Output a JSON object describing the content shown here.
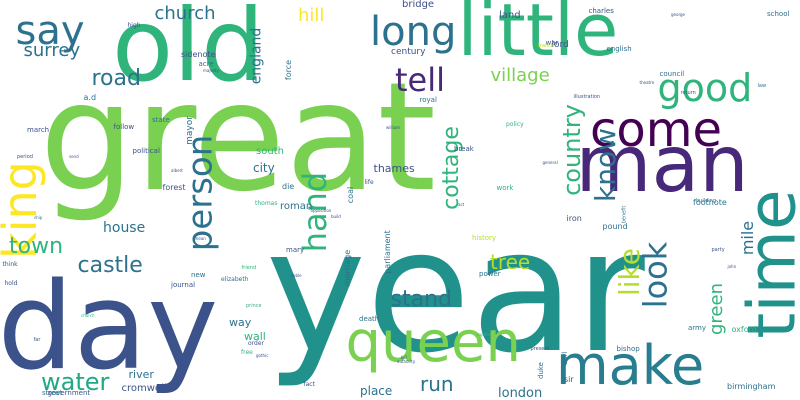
{
  "word_cloud": {
    "palette": {
      "green_lime": "#7ad151",
      "green_light": "#86d549",
      "green": "#2fb47c",
      "green_dark": "#22a884",
      "teal": "#21918c",
      "teal_dark": "#287d8e",
      "blue": "#2c728e",
      "blue_dark": "#3b528b",
      "purple": "#482878",
      "purple_dark": "#440154",
      "yellow": "#fde725",
      "yellow_green": "#b5de2b"
    },
    "words": [
      {
        "text": "great",
        "color": "#7ad151",
        "vertical": false
      },
      {
        "text": "year",
        "color": "#21918c",
        "vertical": false
      },
      {
        "text": "old",
        "color": "#2fb47c",
        "vertical": false
      },
      {
        "text": "little",
        "color": "#2fb47c",
        "vertical": false
      },
      {
        "text": "day",
        "color": "#3b528b",
        "vertical": false
      },
      {
        "text": "man",
        "color": "#482878",
        "vertical": false
      },
      {
        "text": "queen",
        "color": "#7ad151",
        "vertical": false
      },
      {
        "text": "time",
        "color": "#21918c",
        "vertical": true
      },
      {
        "text": "make",
        "color": "#287d8e",
        "vertical": false
      },
      {
        "text": "come",
        "color": "#440154",
        "vertical": false
      },
      {
        "text": "king",
        "color": "#fde725",
        "vertical": true
      },
      {
        "text": "say",
        "color": "#2c728e",
        "vertical": false
      },
      {
        "text": "long",
        "color": "#2c728e",
        "vertical": false
      },
      {
        "text": "good",
        "color": "#2fb47c",
        "vertical": false
      },
      {
        "text": "person",
        "color": "#2c728e",
        "vertical": true
      },
      {
        "text": "tell",
        "color": "#482878",
        "vertical": false
      },
      {
        "text": "know",
        "color": "#2c728e",
        "vertical": true
      },
      {
        "text": "look",
        "color": "#2c728e",
        "vertical": true
      },
      {
        "text": "hand",
        "color": "#2fb47c",
        "vertical": true
      },
      {
        "text": "like",
        "color": "#b5de2b",
        "vertical": true
      },
      {
        "text": "country",
        "color": "#2fb47c",
        "vertical": true
      },
      {
        "text": "road",
        "color": "#2c728e",
        "vertical": false
      },
      {
        "text": "castle",
        "color": "#2c728e",
        "vertical": false
      },
      {
        "text": "town",
        "color": "#2fb47c",
        "vertical": false
      },
      {
        "text": "water",
        "color": "#22a884",
        "vertical": false
      },
      {
        "text": "stand",
        "color": "#2c728e",
        "vertical": false
      },
      {
        "text": "cottage",
        "color": "#2fb47c",
        "vertical": true
      },
      {
        "text": "village",
        "color": "#7ad151",
        "vertical": false
      },
      {
        "text": "church",
        "color": "#2c728e",
        "vertical": false
      },
      {
        "text": "surrey",
        "color": "#2c728e",
        "vertical": false
      },
      {
        "text": "hill",
        "color": "#fde725",
        "vertical": false
      },
      {
        "text": "tree",
        "color": "#b5de2b",
        "vertical": false
      },
      {
        "text": "green",
        "color": "#2fb47c",
        "vertical": true
      },
      {
        "text": "mile",
        "color": "#2c728e",
        "vertical": true
      },
      {
        "text": "run",
        "color": "#2c728e",
        "vertical": false
      },
      {
        "text": "house",
        "color": "#2c728e",
        "vertical": false
      },
      {
        "text": "london",
        "color": "#2c728e",
        "vertical": false
      },
      {
        "text": "england",
        "color": "#2c728e",
        "vertical": true
      },
      {
        "text": "city",
        "color": "#2c728e",
        "vertical": false
      },
      {
        "text": "thames",
        "color": "#3b528b",
        "vertical": false
      },
      {
        "text": "bridge",
        "color": "#3b528b",
        "vertical": false
      },
      {
        "text": "land",
        "color": "#3b528b",
        "vertical": false
      },
      {
        "text": "century",
        "color": "#3b528b",
        "vertical": false
      },
      {
        "text": "lord",
        "color": "#3b528b",
        "vertical": false
      },
      {
        "text": "place",
        "color": "#2c728e",
        "vertical": false
      },
      {
        "text": "river",
        "color": "#2c728e",
        "vertical": false
      },
      {
        "text": "cromwell",
        "color": "#3b528b",
        "vertical": false
      },
      {
        "text": "roman",
        "color": "#2c728e",
        "vertical": false
      },
      {
        "text": "south",
        "color": "#2fb47c",
        "vertical": false
      },
      {
        "text": "wall",
        "color": "#2fb47c",
        "vertical": false
      },
      {
        "text": "way",
        "color": "#2c728e",
        "vertical": false
      },
      {
        "text": "mayor",
        "color": "#2c728e",
        "vertical": true
      },
      {
        "text": "force",
        "color": "#2c728e",
        "vertical": true
      },
      {
        "text": "war",
        "color": "#3b528b",
        "vertical": false
      },
      {
        "text": "charles",
        "color": "#3b528b",
        "vertical": false
      },
      {
        "text": "english",
        "color": "#2c728e",
        "vertical": false
      },
      {
        "text": "council",
        "color": "#2c728e",
        "vertical": false
      },
      {
        "text": "school",
        "color": "#2c728e",
        "vertical": false
      },
      {
        "text": "royal",
        "color": "#2c728e",
        "vertical": false
      },
      {
        "text": "sidenote",
        "color": "#3b528b",
        "vertical": false
      },
      {
        "text": "acre",
        "color": "#2c728e",
        "vertical": false
      },
      {
        "text": "a.d",
        "color": "#2c728e",
        "vertical": false
      },
      {
        "text": "state",
        "color": "#2c728e",
        "vertical": false
      },
      {
        "text": "follow",
        "color": "#3b528b",
        "vertical": false
      },
      {
        "text": "political",
        "color": "#3b528b",
        "vertical": false
      },
      {
        "text": "forest",
        "color": "#3b528b",
        "vertical": false
      },
      {
        "text": "die",
        "color": "#2c728e",
        "vertical": false
      },
      {
        "text": "coal",
        "color": "#2c728e",
        "vertical": true
      },
      {
        "text": "life",
        "color": "#3b528b",
        "vertical": false
      },
      {
        "text": "break",
        "color": "#3b528b",
        "vertical": false
      },
      {
        "text": "work",
        "color": "#2fb47c",
        "vertical": false
      },
      {
        "text": "footnote",
        "color": "#2c728e",
        "vertical": false
      },
      {
        "text": "iron",
        "color": "#3b528b",
        "vertical": false
      },
      {
        "text": "pound",
        "color": "#2c728e",
        "vertical": false
      },
      {
        "text": "army",
        "color": "#2c728e",
        "vertical": false
      },
      {
        "text": "oxford",
        "color": "#2fb47c",
        "vertical": false
      },
      {
        "text": "bishop",
        "color": "#2c728e",
        "vertical": false
      },
      {
        "text": "birmingham",
        "color": "#2c728e",
        "vertical": false
      },
      {
        "text": "power",
        "color": "#2c728e",
        "vertical": false
      },
      {
        "text": "history",
        "color": "#b5de2b",
        "vertical": false
      },
      {
        "text": "mary",
        "color": "#3b528b",
        "vertical": false
      },
      {
        "text": "parliament",
        "color": "#2c728e",
        "vertical": true
      },
      {
        "text": "marriage",
        "color": "#2c728e",
        "vertical": true
      },
      {
        "text": "death",
        "color": "#2c728e",
        "vertical": false
      },
      {
        "text": "duke",
        "color": "#2c728e",
        "vertical": true
      },
      {
        "text": "earl",
        "color": "#2c728e",
        "vertical": true
      },
      {
        "text": "sir",
        "color": "#3b528b",
        "vertical": false
      },
      {
        "text": "government",
        "color": "#3b528b",
        "vertical": false
      },
      {
        "text": "street",
        "color": "#2c728e",
        "vertical": false
      },
      {
        "text": "journal",
        "color": "#3b528b",
        "vertical": false
      },
      {
        "text": "elizabeth",
        "color": "#2c728e",
        "vertical": false
      },
      {
        "text": "new",
        "color": "#2c728e",
        "vertical": false
      },
      {
        "text": "free",
        "color": "#2fb47c",
        "vertical": false
      },
      {
        "text": "order",
        "color": "#3b528b",
        "vertical": false
      },
      {
        "text": "fact",
        "color": "#3b528b",
        "vertical": false
      },
      {
        "text": "present",
        "color": "#3b528b",
        "vertical": false
      },
      {
        "text": "policy",
        "color": "#2fb47c",
        "vertical": false
      },
      {
        "text": "return",
        "color": "#3b528b",
        "vertical": false
      },
      {
        "text": "illustration",
        "color": "#3b528b",
        "vertical": false
      },
      {
        "text": "france",
        "color": "#b5de2b",
        "vertical": false
      },
      {
        "text": "building",
        "color": "#2c728e",
        "vertical": false
      },
      {
        "text": "party",
        "color": "#3b528b",
        "vertical": false
      },
      {
        "text": "law",
        "color": "#2c728e",
        "vertical": false
      },
      {
        "text": "march",
        "color": "#3b528b",
        "vertical": false
      },
      {
        "text": "thomas",
        "color": "#2fb47c",
        "vertical": false
      },
      {
        "text": "period",
        "color": "#3b528b",
        "vertical": false
      },
      {
        "text": "think",
        "color": "#3b528b",
        "vertical": false
      },
      {
        "text": "prince",
        "color": "#2fb47c",
        "vertical": false
      },
      {
        "text": "high",
        "color": "#3b528b",
        "vertical": false
      },
      {
        "text": "benefit",
        "color": "#2c728e",
        "vertical": true
      },
      {
        "text": "friend",
        "color": "#2fb47c",
        "vertical": false
      },
      {
        "text": "hold",
        "color": "#3b528b",
        "vertical": false
      },
      {
        "text": "far",
        "color": "#3b528b",
        "vertical": false
      },
      {
        "text": "send",
        "color": "#3b528b",
        "vertical": false
      },
      {
        "text": "john",
        "color": "#3b528b",
        "vertical": false
      },
      {
        "text": "george",
        "color": "#3b528b",
        "vertical": false
      },
      {
        "text": "william",
        "color": "#3b528b",
        "vertical": false
      },
      {
        "text": "albert",
        "color": "#3b528b",
        "vertical": false
      },
      {
        "text": "majesty",
        "color": "#3b528b",
        "vertical": false
      },
      {
        "text": "gothic",
        "color": "#3b528b",
        "vertical": false
      },
      {
        "text": "general",
        "color": "#3b528b",
        "vertical": false
      },
      {
        "text": "opposition",
        "color": "#3b528b",
        "vertical": false
      },
      {
        "text": "authority",
        "color": "#3b528b",
        "vertical": false
      },
      {
        "text": "theatre",
        "color": "#3b528b",
        "vertical": false
      },
      {
        "text": "capital",
        "color": "#2fb47c",
        "vertical": false
      },
      {
        "text": "church",
        "color": "#2fb47c",
        "vertical": false
      },
      {
        "text": "build",
        "color": "#3b528b",
        "vertical": false
      },
      {
        "text": "mean",
        "color": "#3b528b",
        "vertical": false
      },
      {
        "text": "ship",
        "color": "#2c728e",
        "vertical": false
      },
      {
        "text": "act",
        "color": "#3b528b",
        "vertical": false
      },
      {
        "text": "noble",
        "color": "#3b528b",
        "vertical": false
      },
      {
        "text": "bill",
        "color": "#3b528b",
        "vertical": false
      },
      {
        "text": "date",
        "color": "#3b528b",
        "vertical": false
      }
    ]
  }
}
